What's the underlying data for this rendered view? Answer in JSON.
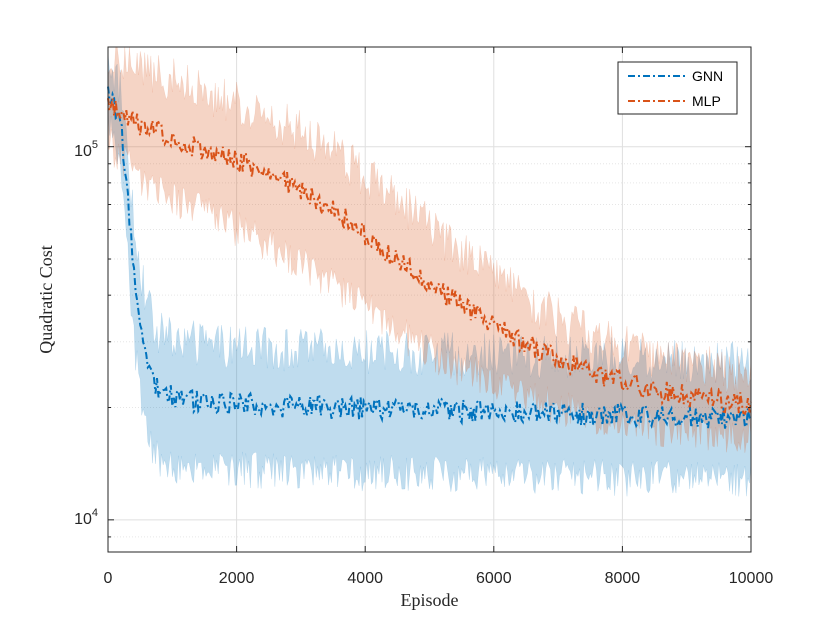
{
  "chart_data": {
    "type": "line",
    "title": "",
    "xlabel": "Episode",
    "ylabel": "Quadratic Cost",
    "xlim": [
      0,
      10000
    ],
    "ylim": [
      8200,
      185000
    ],
    "yscale": "log",
    "grid": true,
    "legend_position": "top-right",
    "x_ticks": [
      0,
      2000,
      4000,
      6000,
      8000,
      10000
    ],
    "x_tick_labels": [
      "0",
      "2000",
      "4000",
      "6000",
      "8000",
      "10000"
    ],
    "y_major_ticks": [
      10000,
      100000
    ],
    "y_tick_labels": [
      {
        "base": "10",
        "exp": "4"
      },
      {
        "base": "10",
        "exp": "5"
      }
    ],
    "band_note": "shaded region shows spread across runs",
    "series": [
      {
        "name": "GNN",
        "color": "#0072BD",
        "band_color": "#0072BD",
        "x": [
          0,
          100,
          200,
          300,
          400,
          500,
          600,
          700,
          800,
          1000,
          1200,
          1500,
          2000,
          2500,
          3000,
          3500,
          4000,
          4500,
          5000,
          5500,
          6000,
          6500,
          7000,
          7500,
          8000,
          8500,
          9000,
          9500,
          10000
        ],
        "mean": [
          140000,
          130000,
          115000,
          75000,
          45000,
          33000,
          27000,
          24000,
          22500,
          21500,
          21000,
          20800,
          20500,
          20300,
          20000,
          20000,
          19900,
          19800,
          19700,
          19600,
          19500,
          19400,
          19300,
          19200,
          19100,
          19000,
          18900,
          18800,
          18800
        ],
        "low": [
          120000,
          110000,
          92000,
          55000,
          32000,
          22000,
          17500,
          15500,
          14800,
          14500,
          14300,
          14200,
          14000,
          13900,
          13800,
          13800,
          13700,
          13700,
          13600,
          13600,
          13500,
          13500,
          13400,
          13400,
          13300,
          13300,
          13200,
          13200,
          13100
        ],
        "high": [
          165000,
          155000,
          140000,
          100000,
          62000,
          47000,
          37500,
          33000,
          31000,
          30000,
          29500,
          29000,
          28500,
          28200,
          28000,
          27800,
          27600,
          27500,
          27300,
          27200,
          27000,
          26800,
          26700,
          26500,
          26400,
          26200,
          26100,
          26000,
          25900
        ]
      },
      {
        "name": "MLP",
        "color": "#D95319",
        "band_color": "#D95319",
        "x": [
          0,
          250,
          500,
          1000,
          1500,
          2000,
          2500,
          3000,
          3500,
          4000,
          4500,
          5000,
          5500,
          6000,
          6500,
          7000,
          7500,
          8000,
          8500,
          9000,
          9500,
          10000
        ],
        "mean": [
          130000,
          122000,
          115000,
          105000,
          98000,
          92000,
          85000,
          77000,
          68000,
          58000,
          50000,
          43000,
          37500,
          33000,
          29500,
          27000,
          25000,
          23500,
          22300,
          21500,
          21000,
          20500
        ],
        "low": [
          105000,
          95000,
          85000,
          75000,
          68000,
          62000,
          56000,
          50000,
          44000,
          38000,
          33000,
          29000,
          26000,
          24000,
          22000,
          20500,
          19500,
          18700,
          18100,
          17700,
          17400,
          17200
        ],
        "high": [
          175000,
          170000,
          160000,
          148000,
          138000,
          128000,
          118000,
          107000,
          95000,
          82000,
          70000,
          60000,
          51000,
          44000,
          38000,
          34000,
          31000,
          28700,
          27000,
          25700,
          24800,
          24000
        ]
      }
    ]
  }
}
